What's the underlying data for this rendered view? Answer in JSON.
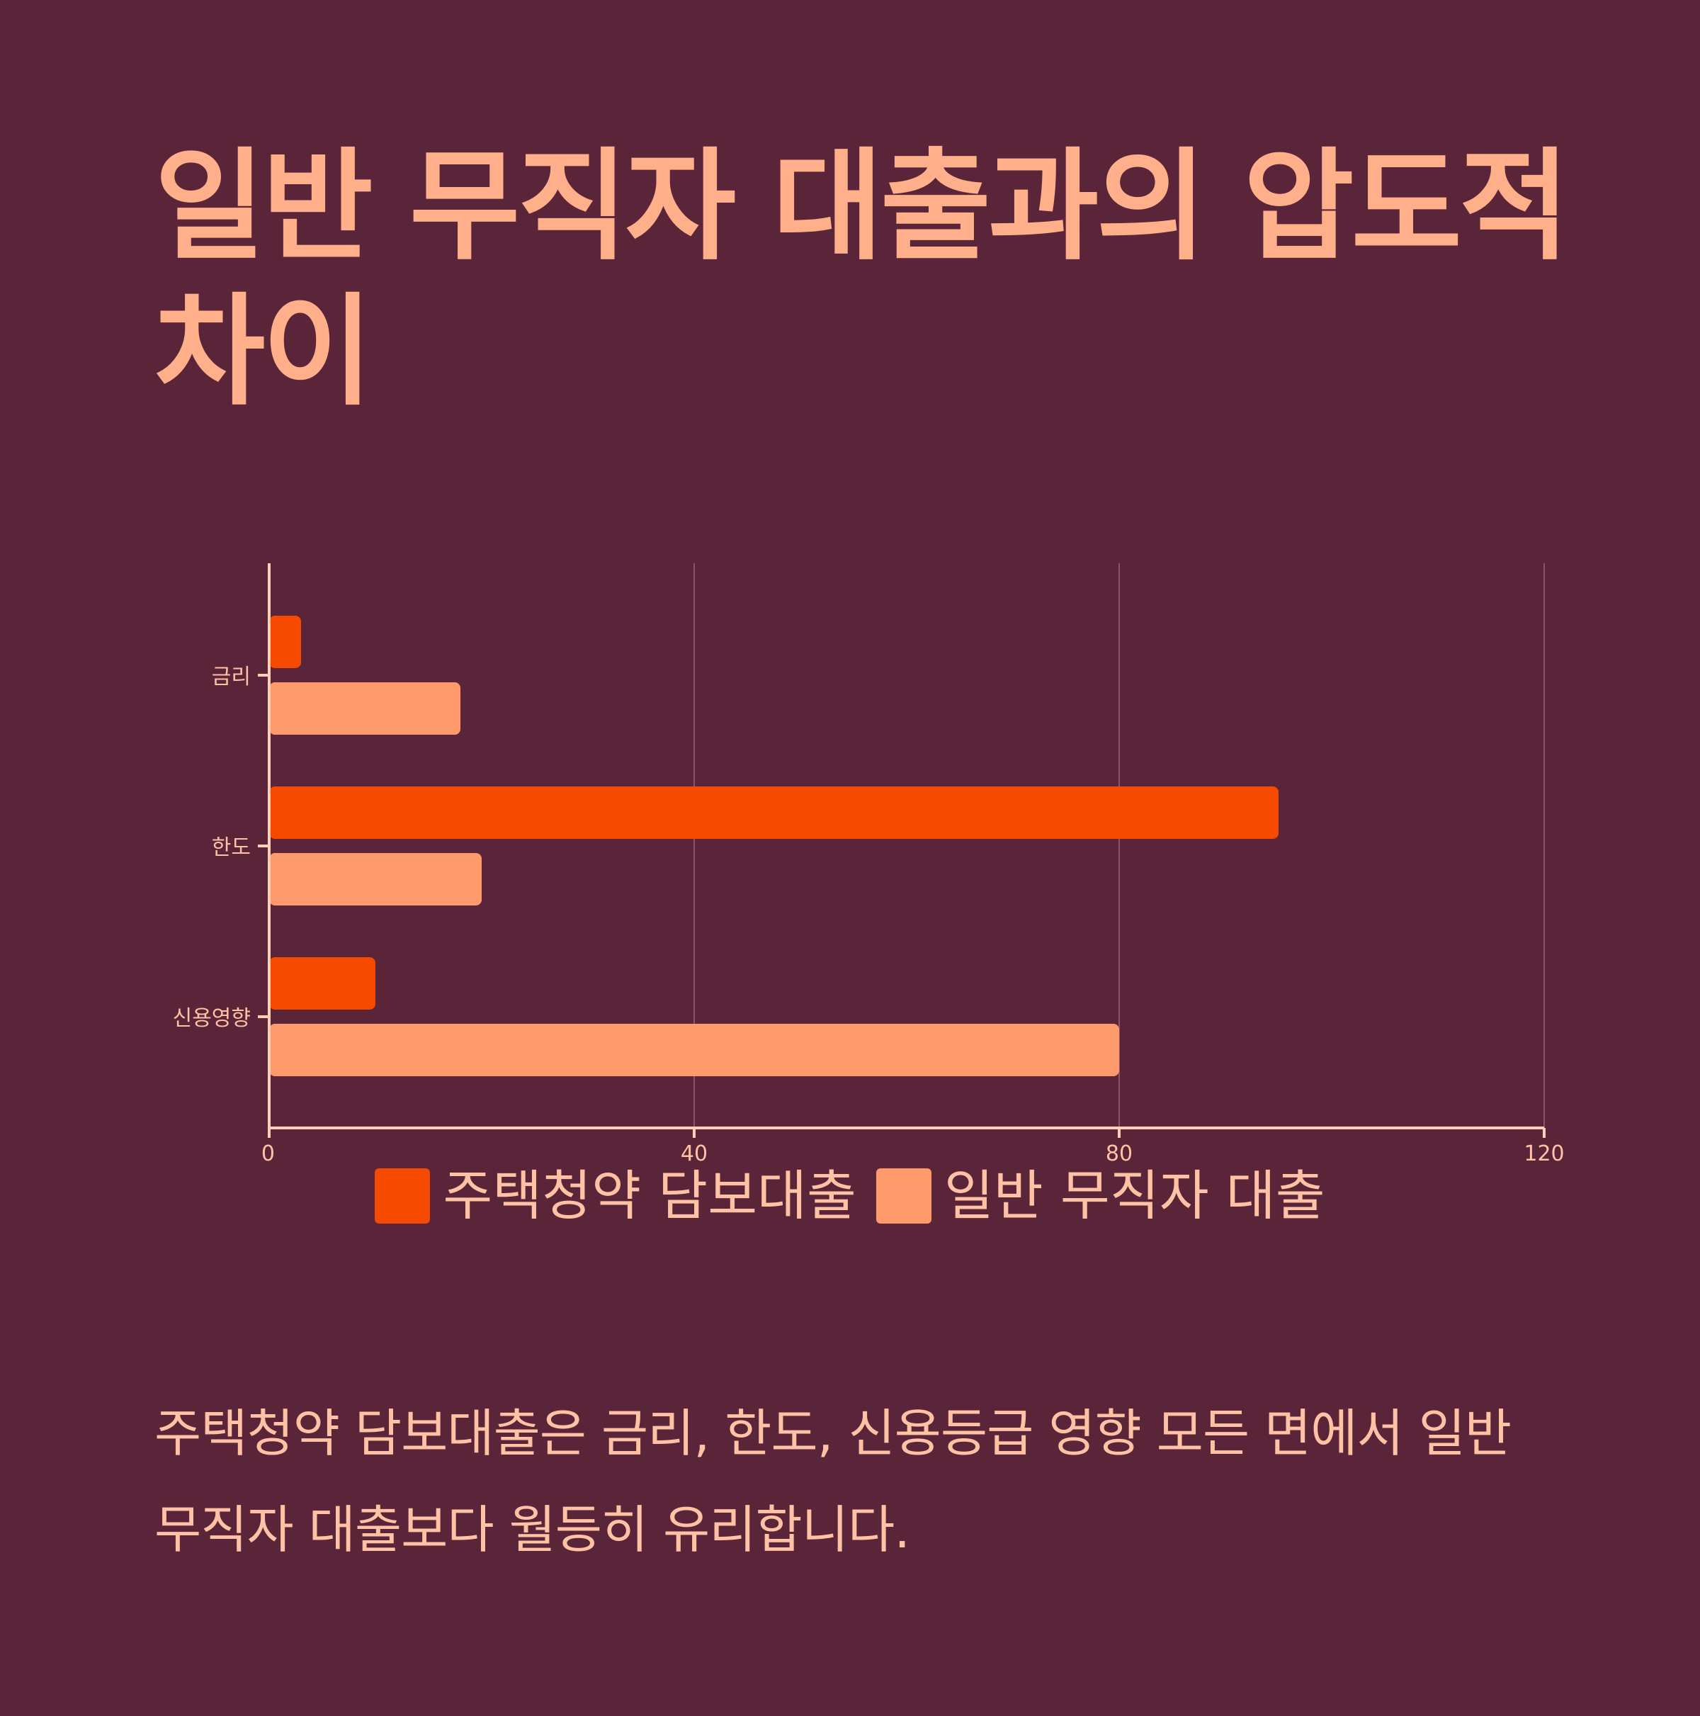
{
  "title": "일반 무직자 대출과의 압도적 차이",
  "caption": "주택청약 담보대출은 금리, 한도, 신용등급 영향 모든 면에서 일반 무직자 대출보다 월등히 유리합니다.",
  "colors": {
    "background": "#5a2439",
    "title": "#ffb08a",
    "text": "#ffc2a4",
    "axis": "#ffd0b8",
    "grid": "#8a5468",
    "series_1": "#f54a00",
    "series_2": "#ff9a6c"
  },
  "chart_data": {
    "type": "bar",
    "orientation": "horizontal",
    "categories": [
      "금리",
      "한도",
      "신용영향"
    ],
    "series": [
      {
        "name": "주택청약 담보대출",
        "values": [
          3,
          95,
          10
        ]
      },
      {
        "name": "일반 무직자 대출",
        "values": [
          18,
          20,
          80
        ]
      }
    ],
    "xlim": [
      0,
      120
    ],
    "xticks": [
      "0",
      "40",
      "80",
      "120"
    ],
    "grid": true,
    "legend": "bottom-center"
  }
}
